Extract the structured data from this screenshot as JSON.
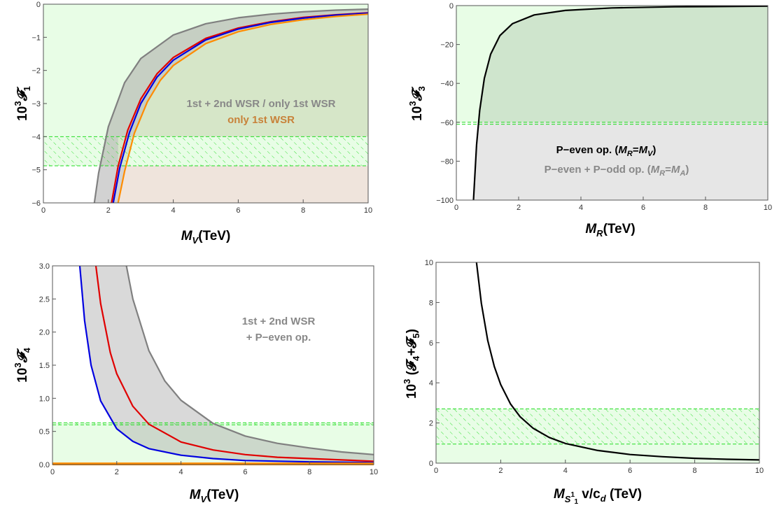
{
  "chart_data": [
    {
      "type": "line",
      "panel": "top-left",
      "xlabel_main": "M",
      "xlabel_sub": "V",
      "xlabel_rest": "(TeV)",
      "ylabel_base": "10",
      "ylabel_exp": "3",
      "ylabel_sym": "𝓕",
      "ylabel_sub": "1",
      "xlim": [
        0,
        10
      ],
      "ylim": [
        -6,
        0
      ],
      "xticks": [
        0,
        2,
        4,
        6,
        8,
        10
      ],
      "yticks": [
        0,
        -1,
        -2,
        -3,
        -4,
        -5,
        -6
      ],
      "ytick_labels": [
        "0",
        "−1",
        "−2",
        "−3",
        "−4",
        "−5",
        "−6"
      ],
      "band": [
        -4.88,
        -4.0
      ],
      "annotations": [
        {
          "text": "1st + 2nd WSR / only 1st WSR",
          "color": "#888888"
        },
        {
          "text": "only 1st WSR",
          "color": "#c8823a"
        }
      ],
      "series": [
        {
          "color": "#808080",
          "x": [
            1.57,
            1.7,
            2.0,
            2.5,
            3.0,
            4.0,
            5.0,
            6.0,
            7.0,
            8.0,
            9.0,
            10.0
          ],
          "y": [
            -6.0,
            -5.1,
            -3.7,
            -2.37,
            -1.64,
            -0.93,
            -0.59,
            -0.41,
            -0.3,
            -0.23,
            -0.18,
            -0.15
          ]
        },
        {
          "color": "#e00000",
          "x": [
            2.1,
            2.3,
            2.6,
            3.0,
            3.5,
            4.0,
            5.0,
            6.0,
            7.0,
            8.0,
            9.0,
            10.0
          ],
          "y": [
            -6.0,
            -4.9,
            -3.8,
            -2.86,
            -2.1,
            -1.61,
            -1.03,
            -0.72,
            -0.53,
            -0.4,
            -0.32,
            -0.26
          ]
        },
        {
          "color": "#0000e0",
          "x": [
            2.15,
            2.35,
            2.65,
            3.0,
            3.5,
            4.0,
            5.0,
            6.0,
            7.0,
            8.0,
            9.0,
            10.0
          ],
          "y": [
            -6.0,
            -4.95,
            -3.87,
            -3.0,
            -2.2,
            -1.69,
            -1.08,
            -0.75,
            -0.55,
            -0.42,
            -0.33,
            -0.27
          ]
        },
        {
          "color": "#ff8c00",
          "x": [
            2.3,
            2.5,
            2.8,
            3.2,
            3.6,
            4.0,
            5.0,
            6.0,
            7.0,
            8.0,
            9.0,
            10.0
          ],
          "y": [
            -6.0,
            -5.05,
            -3.9,
            -2.95,
            -2.3,
            -1.85,
            -1.19,
            -0.83,
            -0.61,
            -0.47,
            -0.37,
            -0.3
          ]
        }
      ]
    },
    {
      "type": "line",
      "panel": "top-right",
      "xlabel_main": "M",
      "xlabel_sub": "R",
      "xlabel_rest": "(TeV)",
      "ylabel_base": "10",
      "ylabel_exp": "3",
      "ylabel_sym": "𝓕",
      "ylabel_sub": "3",
      "xlim": [
        0,
        10
      ],
      "ylim": [
        -100,
        0
      ],
      "xticks": [
        0,
        2,
        4,
        6,
        8,
        10
      ],
      "yticks": [
        0,
        -20,
        -40,
        -60,
        -80,
        -100
      ],
      "ytick_labels": [
        "0",
        "−20",
        "−40",
        "−60",
        "−80",
        "−100"
      ],
      "band": [
        -61.0,
        -60.0
      ],
      "annotations": [
        {
          "text": "P−even op. (M=M)",
          "color": "#000000"
        },
        {
          "text": "P−even + P−odd op. (M=M)",
          "color": "#888888"
        }
      ],
      "series": [
        {
          "color": "#000000",
          "x": [
            0.55,
            0.65,
            0.75,
            0.9,
            1.1,
            1.4,
            1.8,
            2.5,
            3.5,
            5.0,
            7.0,
            10.0
          ],
          "y": [
            -100,
            -71.6,
            -53.8,
            -37.4,
            -25.0,
            -15.4,
            -9.3,
            -4.8,
            -2.5,
            -1.2,
            -0.6,
            -0.3
          ]
        }
      ]
    },
    {
      "type": "line",
      "panel": "bottom-left",
      "xlabel_main": "M",
      "xlabel_sub": "V",
      "xlabel_rest": "(TeV)",
      "ylabel_base": "10",
      "ylabel_exp": "3",
      "ylabel_sym": "𝓕",
      "ylabel_sub": "4",
      "xlim": [
        0,
        10
      ],
      "ylim": [
        0,
        3.0
      ],
      "xticks": [
        0,
        2,
        4,
        6,
        8,
        10
      ],
      "yticks": [
        0,
        0.5,
        1.0,
        1.5,
        2.0,
        2.5,
        3.0
      ],
      "ytick_labels": [
        "0.0",
        "0.5",
        "1.0",
        "1.5",
        "2.0",
        "2.5",
        "3.0"
      ],
      "band": [
        0.6,
        0.63
      ],
      "annotations": [
        {
          "text": "1st + 2nd WSR",
          "color": "#888888"
        },
        {
          "text": "+ P−even op.",
          "color": "#888888"
        }
      ],
      "series": [
        {
          "color": "#808080",
          "x": [
            2.3,
            2.5,
            3.0,
            3.5,
            4.0,
            5.0,
            6.0,
            7.0,
            8.0,
            9.0,
            10.0
          ],
          "y": [
            3.0,
            2.5,
            1.72,
            1.26,
            0.97,
            0.62,
            0.43,
            0.32,
            0.25,
            0.19,
            0.15
          ]
        },
        {
          "color": "#e00000",
          "x": [
            1.35,
            1.5,
            1.8,
            2.0,
            2.5,
            3.0,
            4.0,
            5.0,
            6.0,
            7.0,
            8.0,
            10.0
          ],
          "y": [
            3.0,
            2.43,
            1.69,
            1.37,
            0.88,
            0.61,
            0.34,
            0.22,
            0.15,
            0.11,
            0.09,
            0.05
          ]
        },
        {
          "color": "#0000e0",
          "x": [
            0.85,
            1.0,
            1.2,
            1.5,
            2.0,
            2.5,
            3.0,
            4.0,
            5.0,
            6.0,
            8.0,
            10.0
          ],
          "y": [
            3.0,
            2.17,
            1.5,
            0.96,
            0.54,
            0.35,
            0.24,
            0.14,
            0.09,
            0.06,
            0.04,
            0.03
          ]
        },
        {
          "color": "#ff8c00",
          "x": [
            0,
            10
          ],
          "y": [
            0.01,
            0.01
          ]
        }
      ]
    },
    {
      "type": "line",
      "panel": "bottom-right",
      "xlabel_main": "M",
      "xlabel_sub": "S",
      "xlabel_sup": "1",
      "xlabel_subsub": "1",
      "xlabel_rest": " v/c",
      "xlabel_rest_sub": "d",
      "xlabel_tail": "  (TeV)",
      "ylabel_base": "10",
      "ylabel_exp": "3",
      "ylabel_rest": " (𝓕",
      "ylabel_sub": "4",
      "ylabel_plus": "+𝓕",
      "ylabel_sub2": "5",
      "ylabel_close": ")",
      "xlim": [
        0,
        10
      ],
      "ylim": [
        0,
        10
      ],
      "xticks": [
        0,
        2,
        4,
        6,
        8,
        10
      ],
      "yticks": [
        0,
        2,
        4,
        6,
        8,
        10
      ],
      "ytick_labels": [
        "0",
        "2",
        "4",
        "6",
        "8",
        "10"
      ],
      "band": [
        0.95,
        2.7
      ],
      "annotations": [],
      "series": [
        {
          "color": "#000000",
          "x": [
            1.25,
            1.4,
            1.6,
            1.8,
            2.0,
            2.3,
            2.6,
            3.0,
            3.5,
            4.0,
            5.0,
            6.0,
            7.0,
            8.0,
            9.0,
            10.0
          ],
          "y": [
            10.0,
            7.97,
            6.1,
            4.82,
            3.91,
            2.95,
            2.31,
            1.74,
            1.28,
            0.98,
            0.63,
            0.43,
            0.32,
            0.24,
            0.19,
            0.16
          ]
        }
      ]
    }
  ]
}
